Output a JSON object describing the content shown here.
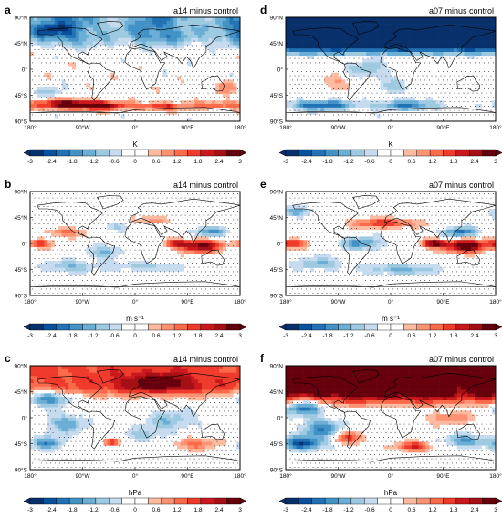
{
  "colors": {
    "levels": [
      "#08306b",
      "#08519c",
      "#2171b5",
      "#4292c6",
      "#6baed6",
      "#9ecae1",
      "#c6dbef",
      "#ffffff",
      "#ffffff",
      "#fcbba1",
      "#fc9272",
      "#fb6a4a",
      "#ef3b2c",
      "#cb181d",
      "#a50f15",
      "#67000d"
    ],
    "land": "#000000",
    "frame": "#000000"
  },
  "colorbar": {
    "ticks": [
      "-3",
      "-2.4",
      "-1.8",
      "-1.2",
      "-0.6",
      "0",
      "0.6",
      "1.2",
      "1.8",
      "2.4",
      "3"
    ]
  },
  "axes": {
    "x_ticks": [
      "180°",
      "90°W",
      "0°",
      "90°E",
      "180°"
    ],
    "y_ticks": [
      "90°N",
      "45°N",
      "0°",
      "45°S",
      "90°S"
    ]
  },
  "chart_data": [
    {
      "type": "heatmap",
      "panel_label": "a",
      "title": "a14 minus control",
      "unit": "K",
      "color_range": [
        -3,
        3
      ],
      "pattern": "temp_a"
    },
    {
      "type": "heatmap",
      "panel_label": "d",
      "title": "a07 minus control",
      "unit": "K",
      "color_range": [
        -3,
        3
      ],
      "pattern": "temp_d"
    },
    {
      "type": "heatmap",
      "panel_label": "b",
      "title": "a14 minus control",
      "unit": "m s⁻¹",
      "color_range": [
        -3,
        3
      ],
      "pattern": "wind_b"
    },
    {
      "type": "heatmap",
      "panel_label": "e",
      "title": "a07 minus control",
      "unit": "m s⁻¹",
      "color_range": [
        -3,
        3
      ],
      "pattern": "wind_e"
    },
    {
      "type": "heatmap",
      "panel_label": "c",
      "title": "a14 minus control",
      "unit": "hPa",
      "color_range": [
        -3,
        3
      ],
      "pattern": "pres_c"
    },
    {
      "type": "heatmap",
      "panel_label": "f",
      "title": "a07 minus control",
      "unit": "hPa",
      "color_range": [
        -3,
        3
      ],
      "pattern": "pres_f"
    }
  ]
}
